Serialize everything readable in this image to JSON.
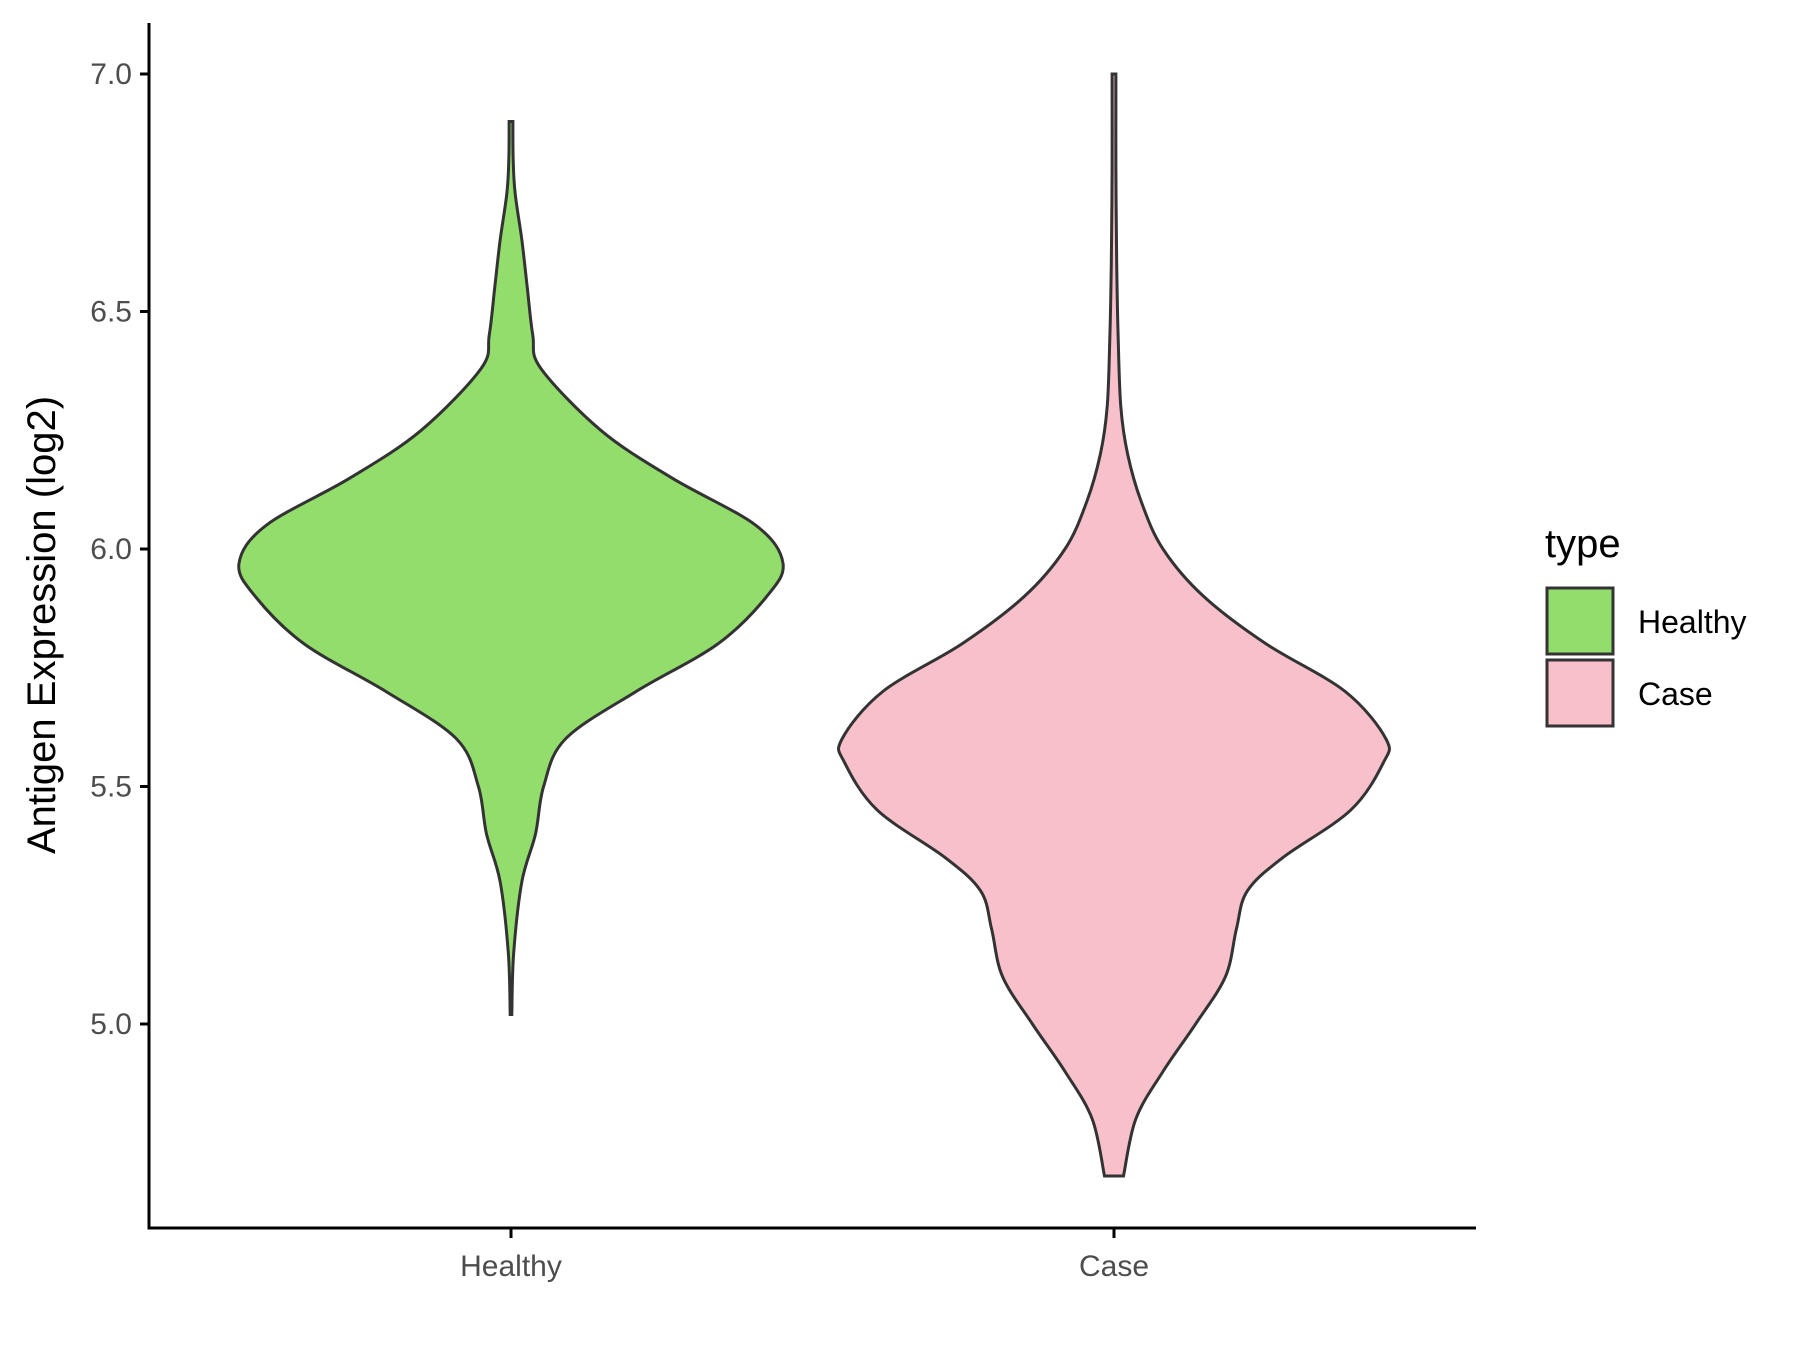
{
  "chart_data": {
    "type": "violin",
    "title": "",
    "xlabel": "",
    "ylabel": "Antigen Expression (log2)",
    "categories": [
      "Healthy",
      "Case"
    ],
    "ylim": [
      4.6,
      7.11
    ],
    "yticks": [
      5.0,
      5.5,
      6.0,
      6.5,
      7.0
    ],
    "ytick_labels": [
      "5.0",
      "5.5",
      "6.0",
      "6.5",
      "7.0"
    ],
    "grid": false,
    "legend": {
      "title": "type",
      "position": "right",
      "entries": [
        {
          "label": "Healthy",
          "color": "#93DD6C"
        },
        {
          "label": "Case",
          "color": "#F8C0CB"
        }
      ]
    },
    "series": [
      {
        "category": "Healthy",
        "color": "#93DD6C",
        "min": 5.02,
        "max": 6.9,
        "density_profile": [
          [
            5.02,
            0.003
          ],
          [
            5.15,
            0.01
          ],
          [
            5.3,
            0.04
          ],
          [
            5.4,
            0.09
          ],
          [
            5.5,
            0.12
          ],
          [
            5.6,
            0.2
          ],
          [
            5.7,
            0.46
          ],
          [
            5.8,
            0.76
          ],
          [
            5.9,
            0.94
          ],
          [
            5.97,
            1.0
          ],
          [
            6.05,
            0.9
          ],
          [
            6.15,
            0.59
          ],
          [
            6.25,
            0.33
          ],
          [
            6.38,
            0.11
          ],
          [
            6.45,
            0.08
          ],
          [
            6.55,
            0.06
          ],
          [
            6.65,
            0.04
          ],
          [
            6.75,
            0.015
          ],
          [
            6.82,
            0.008
          ],
          [
            6.9,
            0.007
          ]
        ]
      },
      {
        "category": "Case",
        "color": "#F8C0CB",
        "min": 4.68,
        "max": 7.0,
        "density_profile": [
          [
            4.68,
            0.035
          ],
          [
            4.8,
            0.08
          ],
          [
            4.9,
            0.18
          ],
          [
            5.0,
            0.3
          ],
          [
            5.1,
            0.41
          ],
          [
            5.2,
            0.45
          ],
          [
            5.28,
            0.49
          ],
          [
            5.35,
            0.62
          ],
          [
            5.45,
            0.87
          ],
          [
            5.55,
            0.99
          ],
          [
            5.6,
            1.0
          ],
          [
            5.7,
            0.85
          ],
          [
            5.8,
            0.56
          ],
          [
            5.9,
            0.33
          ],
          [
            6.0,
            0.18
          ],
          [
            6.1,
            0.1
          ],
          [
            6.2,
            0.05
          ],
          [
            6.3,
            0.025
          ],
          [
            6.45,
            0.015
          ],
          [
            6.6,
            0.01
          ],
          [
            6.8,
            0.007
          ],
          [
            7.0,
            0.007
          ]
        ]
      }
    ]
  }
}
